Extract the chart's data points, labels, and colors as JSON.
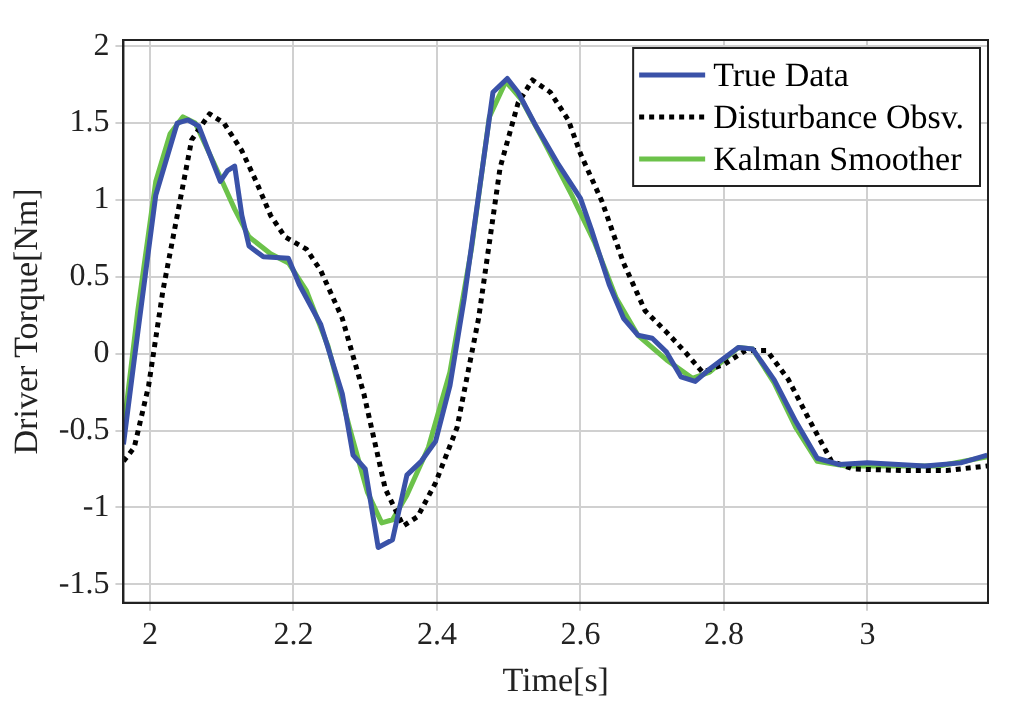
{
  "chart_data": {
    "type": "line",
    "xlabel": "Time[s]",
    "ylabel": "Driver Torque[Nm]",
    "xlim": [
      1.963,
      3.168
    ],
    "xticks": [
      2,
      2.2,
      2.4,
      2.6,
      2.8,
      3
    ],
    "ylim": [
      -1.62,
      2.04
    ],
    "yticks": [
      -1.5,
      -1,
      -0.5,
      0,
      0.5,
      1,
      1.5,
      2
    ],
    "grid": true,
    "legend": "top right",
    "marker": "none",
    "series": [
      {
        "name": "True Data",
        "color": "#3a52a8",
        "line_style": "solid",
        "x": [
          1.963,
          1.978,
          2.008,
          2.038,
          2.053,
          2.068,
          2.083,
          2.098,
          2.108,
          2.118,
          2.128,
          2.138,
          2.158,
          2.193,
          2.208,
          2.238,
          2.268,
          2.283,
          2.3,
          2.318,
          2.338,
          2.358,
          2.378,
          2.398,
          2.418,
          2.438,
          2.458,
          2.478,
          2.498,
          2.513,
          2.538,
          2.568,
          2.6,
          2.615,
          2.64,
          2.66,
          2.68,
          2.7,
          2.72,
          2.74,
          2.76,
          2.78,
          2.82,
          2.84,
          2.87,
          2.9,
          2.93,
          2.96,
          3.0,
          3.08,
          3.13,
          3.167
        ],
        "values": [
          -0.59,
          -0.04,
          1.03,
          1.5,
          1.52,
          1.48,
          1.3,
          1.12,
          1.19,
          1.22,
          0.9,
          0.7,
          0.63,
          0.62,
          0.45,
          0.19,
          -0.26,
          -0.66,
          -0.75,
          -1.26,
          -1.21,
          -0.79,
          -0.7,
          -0.57,
          -0.21,
          0.36,
          1.03,
          1.7,
          1.79,
          1.7,
          1.48,
          1.24,
          1.01,
          0.81,
          0.45,
          0.23,
          0.12,
          0.1,
          0.01,
          -0.15,
          -0.18,
          -0.1,
          0.04,
          0.03,
          -0.17,
          -0.44,
          -0.68,
          -0.72,
          -0.71,
          -0.73,
          -0.71,
          -0.66
        ]
      },
      {
        "name": "Disturbance Obsv.",
        "color": "#000000",
        "line_style": "dotted",
        "x": [
          1.963,
          1.978,
          1.998,
          2.018,
          2.038,
          2.058,
          2.083,
          2.103,
          2.128,
          2.148,
          2.168,
          2.188,
          2.218,
          2.238,
          2.268,
          2.298,
          2.328,
          2.353,
          2.373,
          2.398,
          2.428,
          2.458,
          2.488,
          2.513,
          2.533,
          2.558,
          2.583,
          2.6,
          2.63,
          2.66,
          2.69,
          2.72,
          2.746,
          2.77,
          2.8,
          2.83,
          2.86,
          2.89,
          2.92,
          2.95,
          2.98,
          3.05,
          3.11,
          3.167
        ],
        "values": [
          -0.7,
          -0.61,
          -0.21,
          0.41,
          0.9,
          1.39,
          1.56,
          1.5,
          1.32,
          1.12,
          0.9,
          0.76,
          0.68,
          0.54,
          0.23,
          -0.26,
          -0.88,
          -1.12,
          -1.06,
          -0.84,
          -0.48,
          0.23,
          1.21,
          1.63,
          1.78,
          1.7,
          1.52,
          1.3,
          0.99,
          0.59,
          0.28,
          0.14,
          0.01,
          -0.12,
          -0.07,
          0.02,
          0.02,
          -0.17,
          -0.44,
          -0.7,
          -0.75,
          -0.76,
          -0.76,
          -0.73
        ]
      },
      {
        "name": "Kalman Smoother",
        "color": "#6cc24a",
        "line_style": "solid",
        "x": [
          1.963,
          1.983,
          2.008,
          2.028,
          2.046,
          2.063,
          2.088,
          2.118,
          2.138,
          2.168,
          2.193,
          2.218,
          2.248,
          2.278,
          2.303,
          2.323,
          2.338,
          2.358,
          2.388,
          2.418,
          2.448,
          2.473,
          2.496,
          2.518,
          2.548,
          2.588,
          2.62,
          2.65,
          2.68,
          2.72,
          2.756,
          2.78,
          2.82,
          2.84,
          2.87,
          2.9,
          2.93,
          2.97,
          3.03,
          3.1,
          3.167
        ],
        "values": [
          -0.5,
          0.28,
          1.12,
          1.43,
          1.54,
          1.5,
          1.25,
          0.94,
          0.76,
          0.65,
          0.59,
          0.41,
          0.05,
          -0.48,
          -0.9,
          -1.1,
          -1.08,
          -0.92,
          -0.61,
          -0.12,
          0.68,
          1.54,
          1.77,
          1.65,
          1.39,
          1.03,
          0.72,
          0.36,
          0.12,
          -0.04,
          -0.16,
          -0.12,
          0.04,
          0.03,
          -0.19,
          -0.48,
          -0.7,
          -0.73,
          -0.73,
          -0.73,
          -0.67
        ]
      }
    ]
  }
}
